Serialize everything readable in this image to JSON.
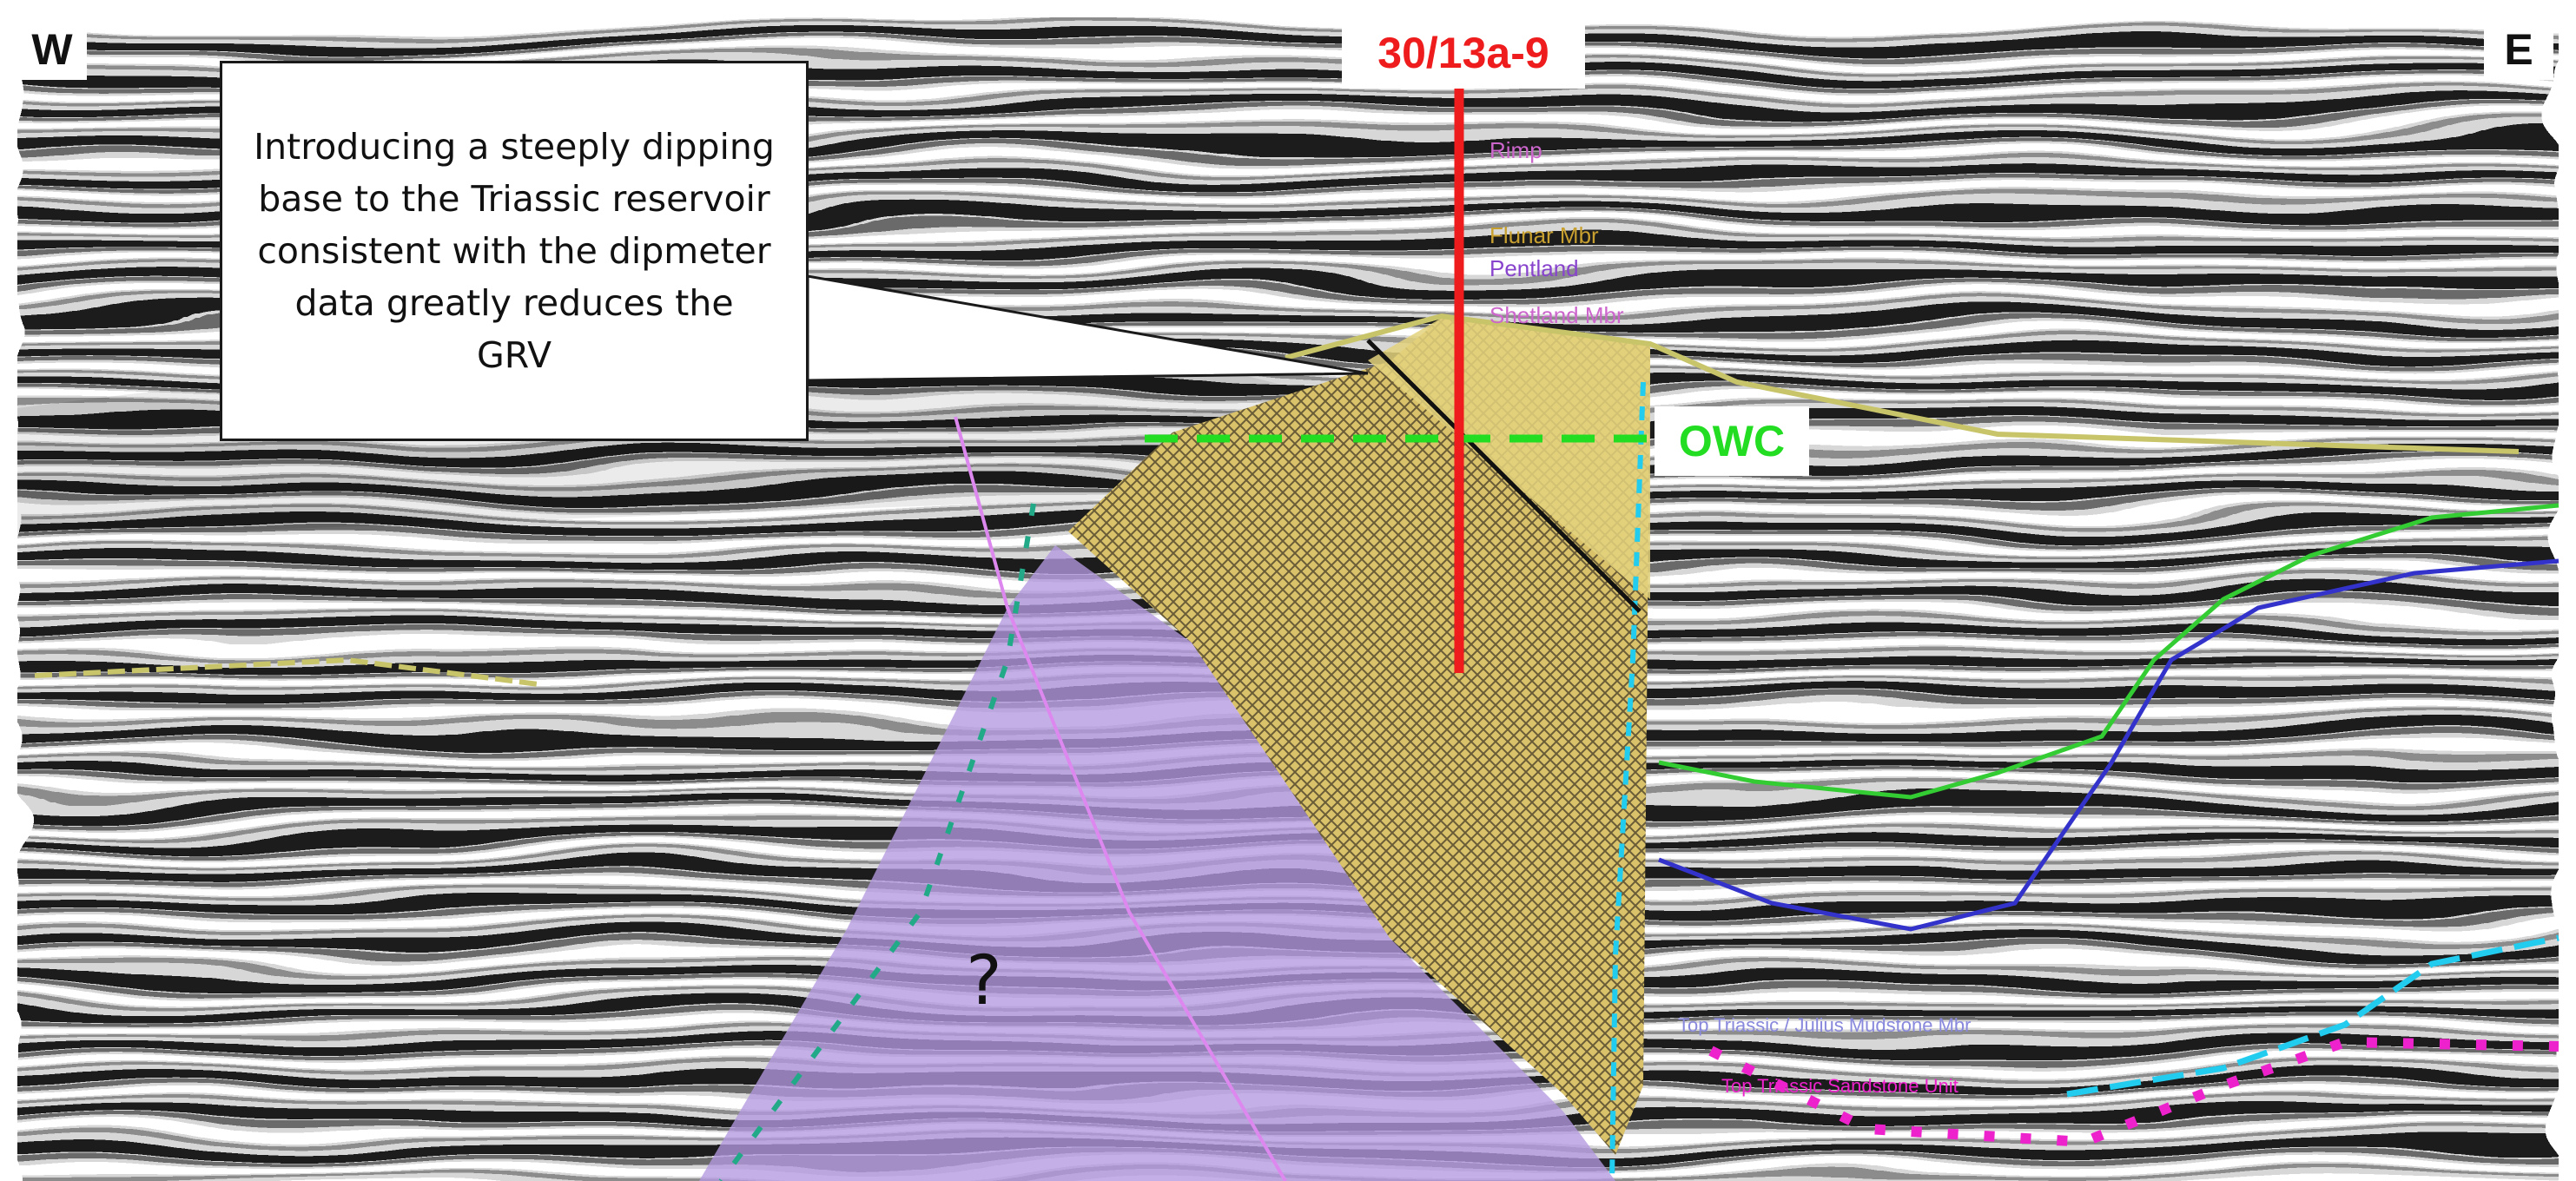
{
  "direction_labels": {
    "west": "W",
    "east": "E"
  },
  "well": {
    "name": "30/13a-9",
    "color": "#ee1c1c"
  },
  "contact": {
    "label": "OWC",
    "color": "#22dd22"
  },
  "callout": {
    "text": "Introducing a steeply dipping base to the Triassic reservoir consistent with the dipmeter data greatly reduces the GRV"
  },
  "unknown_zone_label": "?",
  "colors": {
    "reservoir_fill": "#d9c26a",
    "reservoir_hatch": "#3a3020",
    "unknown_zone_fill": "#b49ae0",
    "horizon_green": "#33cc33",
    "horizon_blue": "#3333cc",
    "horizon_cyan": "#22ccee",
    "horizon_magenta": "#ee22cc",
    "horizon_olive": "#c8c46a",
    "fault_pink": "#dd88ee",
    "fault_teal": "#22aa88"
  },
  "well_marker_annotations": [
    "Rimp",
    "Flunar Mbr",
    "Pentland",
    "Shetland Mbr"
  ],
  "deep_horizon_annotations": [
    "Top Triassic / Julius Mudstone Mbr",
    "Top Triassic Sandstone Unit"
  ]
}
